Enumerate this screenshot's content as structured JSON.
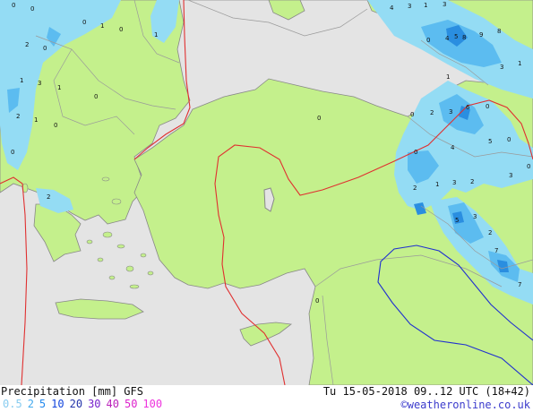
{
  "map": {
    "colors": {
      "sea": "#e4e4e4",
      "land": "#c4f08c",
      "precip_light": "#94dcf4",
      "precip_mid": "#5cbcf0",
      "precip_heavy": "#2a8ee0",
      "isoline_red": "#e03030",
      "isoline_blue": "#2030d0"
    },
    "precip_labels": [
      {
        "text": "0"
      },
      {
        "text": "0"
      },
      {
        "text": "0"
      },
      {
        "text": "1"
      },
      {
        "text": "0"
      },
      {
        "text": "1"
      },
      {
        "text": "2"
      },
      {
        "text": "0"
      },
      {
        "text": "1"
      },
      {
        "text": "3"
      },
      {
        "text": "1"
      },
      {
        "text": "0"
      },
      {
        "text": "2"
      },
      {
        "text": "1"
      },
      {
        "text": "0"
      },
      {
        "text": "0"
      },
      {
        "text": "0"
      },
      {
        "text": "0"
      },
      {
        "text": "4"
      },
      {
        "text": "3"
      },
      {
        "text": "1"
      },
      {
        "text": "3"
      },
      {
        "text": "0"
      },
      {
        "text": "4"
      },
      {
        "text": "5"
      },
      {
        "text": "8"
      },
      {
        "text": "9"
      },
      {
        "text": "8"
      },
      {
        "text": "3"
      },
      {
        "text": "1"
      },
      {
        "text": "1"
      },
      {
        "text": "0"
      },
      {
        "text": "2"
      },
      {
        "text": "3"
      },
      {
        "text": "6"
      },
      {
        "text": "0"
      },
      {
        "text": "4"
      },
      {
        "text": "5"
      },
      {
        "text": "0"
      },
      {
        "text": "0"
      },
      {
        "text": "3"
      },
      {
        "text": "2"
      },
      {
        "text": "1"
      },
      {
        "text": "3"
      },
      {
        "text": "2"
      },
      {
        "text": "5"
      },
      {
        "text": "3"
      },
      {
        "text": "2"
      },
      {
        "text": "7"
      },
      {
        "text": "7"
      },
      {
        "text": "0"
      },
      {
        "text": "2"
      }
    ]
  },
  "footer": {
    "title": "Precipitation [mm] GFS",
    "valid": "Tu 15-05-2018 09..12 UTC (18+42)",
    "credit": "©weatheronline.co.uk",
    "legend": [
      {
        "label": "0.5",
        "color": "#88ccf0"
      },
      {
        "label": "2",
        "color": "#44aaee"
      },
      {
        "label": "5",
        "color": "#2288ee"
      },
      {
        "label": "10",
        "color": "#1144dd"
      },
      {
        "label": "20",
        "color": "#2233aa"
      },
      {
        "label": "30",
        "color": "#7722cc"
      },
      {
        "label": "40",
        "color": "#bb22bb"
      },
      {
        "label": "50",
        "color": "#dd22cc"
      },
      {
        "label": "100",
        "color": "#ee33dd"
      }
    ]
  }
}
